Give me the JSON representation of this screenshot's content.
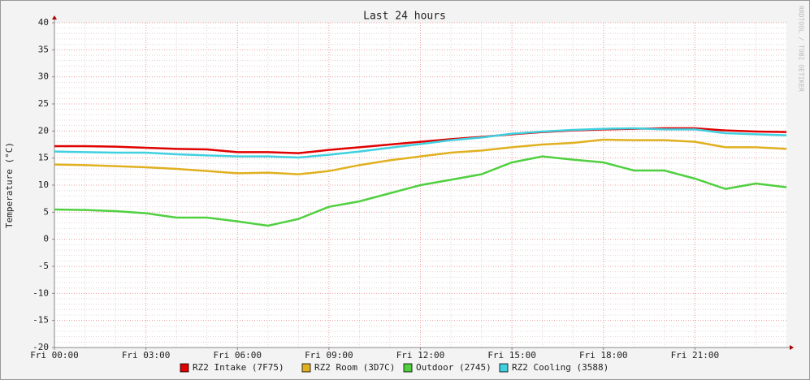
{
  "chart_data": {
    "type": "line",
    "title": "Last 24 hours",
    "y_label": "Temperature (°C)",
    "watermark": "RRDTOOL / TOBI OETIKER",
    "x": [
      0,
      1,
      2,
      3,
      4,
      5,
      6,
      7,
      8,
      9,
      10,
      11,
      12,
      13,
      14,
      15,
      16,
      17,
      18,
      19,
      20,
      21,
      22,
      23,
      24
    ],
    "xlim": [
      0,
      24
    ],
    "xticks": [
      {
        "value": 0,
        "label": "Fri 00:00"
      },
      {
        "value": 3,
        "label": "Fri 03:00"
      },
      {
        "value": 6,
        "label": "Fri 06:00"
      },
      {
        "value": 9,
        "label": "Fri 09:00"
      },
      {
        "value": 12,
        "label": "Fri 12:00"
      },
      {
        "value": 15,
        "label": "Fri 15:00"
      },
      {
        "value": 18,
        "label": "Fri 18:00"
      },
      {
        "value": 21,
        "label": "Fri 21:00"
      }
    ],
    "ylim": [
      -20,
      40
    ],
    "yticks": [
      -20,
      -15,
      -10,
      -5,
      0,
      5,
      10,
      15,
      20,
      25,
      30,
      35,
      40
    ],
    "grid": true,
    "series": [
      {
        "name": "RZ2 Intake (7F75)",
        "color": "#e00000",
        "values": [
          17.2,
          17.2,
          17.1,
          16.9,
          16.7,
          16.6,
          16.1,
          16.1,
          15.9,
          16.5,
          17.0,
          17.5,
          18.0,
          18.5,
          18.9,
          19.4,
          19.8,
          20.1,
          20.3,
          20.4,
          20.5,
          20.5,
          20.1,
          19.9,
          19.8
        ]
      },
      {
        "name": "RZ2 Room (3D7C)",
        "color": "#e0b020",
        "values": [
          13.8,
          13.7,
          13.5,
          13.3,
          13.0,
          12.6,
          12.2,
          12.3,
          12.0,
          12.6,
          13.7,
          14.6,
          15.3,
          16.0,
          16.4,
          17.0,
          17.5,
          17.8,
          18.4,
          18.3,
          18.3,
          18.0,
          17.0,
          17.0,
          16.7
        ]
      },
      {
        "name": "Outdoor (2745)",
        "color": "#50d040",
        "values": [
          5.5,
          5.4,
          5.2,
          4.8,
          4.0,
          4.0,
          3.3,
          2.5,
          3.75,
          6.0,
          7.0,
          8.5,
          10.0,
          11.0,
          12.0,
          14.2,
          15.3,
          14.7,
          14.2,
          12.7,
          12.7,
          11.2,
          9.3,
          10.3,
          9.6
        ]
      },
      {
        "name": "RZ2 Cooling (3588)",
        "color": "#40d0e0",
        "values": [
          16.2,
          16.1,
          16.0,
          16.0,
          15.7,
          15.5,
          15.3,
          15.3,
          15.1,
          15.6,
          16.2,
          16.9,
          17.6,
          18.3,
          18.8,
          19.5,
          19.9,
          20.2,
          20.4,
          20.5,
          20.3,
          20.3,
          19.6,
          19.4,
          19.2
        ]
      }
    ]
  }
}
